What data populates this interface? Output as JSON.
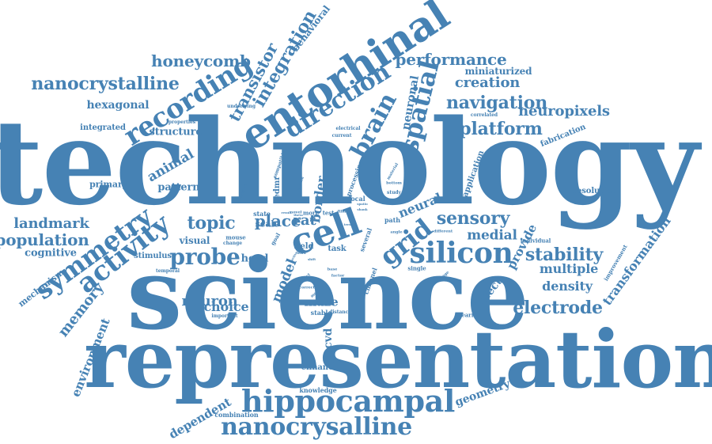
{
  "word_color": "#4682b4",
  "words": [
    {
      "text": "technology",
      "weight": 1.0
    },
    {
      "text": "science",
      "weight": 0.95
    },
    {
      "text": "representation",
      "weight": 0.75
    },
    {
      "text": "entorhinal",
      "weight": 0.45
    },
    {
      "text": "cell",
      "weight": 0.42
    },
    {
      "text": "hippocampal",
      "weight": 0.32
    },
    {
      "text": "nanocrysalline",
      "weight": 0.28
    },
    {
      "text": "symmetry",
      "weight": 0.28
    },
    {
      "text": "recording",
      "weight": 0.28
    },
    {
      "text": "silicon",
      "weight": 0.28
    },
    {
      "text": "spatial",
      "weight": 0.25
    },
    {
      "text": "activity",
      "weight": 0.26
    },
    {
      "text": "direction",
      "weight": 0.25
    },
    {
      "text": "grid",
      "weight": 0.27
    },
    {
      "text": "probe",
      "weight": 0.22
    },
    {
      "text": "brain",
      "weight": 0.22
    },
    {
      "text": "nanocrystalline",
      "weight": 0.22
    },
    {
      "text": "platform",
      "weight": 0.2
    },
    {
      "text": "navigation",
      "weight": 0.2
    },
    {
      "text": "integration",
      "weight": 0.2
    },
    {
      "text": "electrode",
      "weight": 0.2
    },
    {
      "text": "performance",
      "weight": 0.2
    },
    {
      "text": "stability",
      "weight": 0.2
    },
    {
      "text": "sensory",
      "weight": 0.2
    },
    {
      "text": "topic",
      "weight": 0.2
    },
    {
      "text": "population",
      "weight": 0.18
    },
    {
      "text": "landmark",
      "weight": 0.18
    },
    {
      "text": "neuropixels",
      "weight": 0.18
    },
    {
      "text": "place",
      "weight": 0.2
    },
    {
      "text": "transistor",
      "weight": 0.18
    },
    {
      "text": "honeycomb",
      "weight": 0.18
    },
    {
      "text": "creation",
      "weight": 0.16
    },
    {
      "text": "neuron",
      "weight": 0.16
    },
    {
      "text": "transformation",
      "weight": 0.16
    },
    {
      "text": "memory",
      "weight": 0.16
    },
    {
      "text": "medial",
      "weight": 0.15
    },
    {
      "text": "model",
      "weight": 0.15
    },
    {
      "text": "animal",
      "weight": 0.15
    },
    {
      "text": "rat",
      "weight": 0.15
    },
    {
      "text": "choice",
      "weight": 0.14
    },
    {
      "text": "density",
      "weight": 0.14
    },
    {
      "text": "multiple",
      "weight": 0.14
    },
    {
      "text": "provide",
      "weight": 0.14
    },
    {
      "text": "maze",
      "weight": 0.14
    },
    {
      "text": "pecvd",
      "weight": 0.14
    },
    {
      "text": "border",
      "weight": 0.14
    },
    {
      "text": "neural",
      "weight": 0.14
    },
    {
      "text": "defect",
      "weight": 0.13
    },
    {
      "text": "environment",
      "weight": 0.13
    },
    {
      "text": "dependent",
      "weight": 0.13
    },
    {
      "text": "geometry",
      "weight": 0.12
    },
    {
      "text": "neuronal",
      "weight": 0.12
    },
    {
      "text": "hexagonal",
      "weight": 0.12
    },
    {
      "text": "structure",
      "weight": 0.12
    },
    {
      "text": "mechanism",
      "weight": 0.11
    },
    {
      "text": "pattern",
      "weight": 0.12
    },
    {
      "text": "head",
      "weight": 0.12
    },
    {
      "text": "cognitive",
      "weight": 0.12
    },
    {
      "text": "miniaturized",
      "weight": 0.12
    },
    {
      "text": "behavioral",
      "weight": 0.12
    },
    {
      "text": "primary",
      "weight": 0.11
    },
    {
      "text": "visual",
      "weight": 0.11
    },
    {
      "text": "fabrication",
      "weight": 0.1
    },
    {
      "text": "application",
      "weight": 0.1
    },
    {
      "text": "resolution",
      "weight": 0.1
    },
    {
      "text": "stimulus",
      "weight": 0.1
    },
    {
      "text": "integrated",
      "weight": 0.1
    },
    {
      "text": "scale",
      "weight": 0.11
    },
    {
      "text": "task",
      "weight": 0.1
    },
    {
      "text": "field",
      "weight": 0.1
    },
    {
      "text": "edmr",
      "weight": 0.1
    },
    {
      "text": "enhance",
      "weight": 0.1
    },
    {
      "text": "knowledge",
      "weight": 0.08
    },
    {
      "text": "combination",
      "weight": 0.08
    },
    {
      "text": "channel",
      "weight": 0.09
    },
    {
      "text": "processing",
      "weight": 0.08
    },
    {
      "text": "path",
      "weight": 0.09
    },
    {
      "text": "state",
      "weight": 0.09
    },
    {
      "text": "local",
      "weight": 0.09
    },
    {
      "text": "more",
      "weight": 0.08
    },
    {
      "text": "test",
      "weight": 0.08
    },
    {
      "text": "goal",
      "weight": 0.08
    },
    {
      "text": "several",
      "weight": 0.08
    },
    {
      "text": "mouse",
      "weight": 0.08
    },
    {
      "text": "improvement",
      "weight": 0.08
    },
    {
      "text": "learning",
      "weight": 0.08
    },
    {
      "text": "individual",
      "weight": 0.07
    },
    {
      "text": "stable",
      "weight": 0.08
    },
    {
      "text": "distance",
      "weight": 0.07
    },
    {
      "text": "important",
      "weight": 0.07
    },
    {
      "text": "temporal",
      "weight": 0.07
    },
    {
      "text": "change",
      "weight": 0.07
    },
    {
      "text": "single",
      "weight": 0.08
    },
    {
      "text": "properties",
      "weight": 0.07
    },
    {
      "text": "underlying",
      "weight": 0.07
    },
    {
      "text": "electrical",
      "weight": 0.07
    },
    {
      "text": "current",
      "weight": 0.07
    },
    {
      "text": "correlated",
      "weight": 0.07
    },
    {
      "text": "compatible",
      "weight": 0.06
    },
    {
      "text": "enclosure",
      "weight": 0.06
    },
    {
      "text": "study",
      "weight": 0.07
    },
    {
      "text": "different",
      "weight": 0.06
    },
    {
      "text": "angle",
      "weight": 0.06
    },
    {
      "text": "coverage",
      "weight": 0.06
    },
    {
      "text": "factor",
      "weight": 0.06
    },
    {
      "text": "base",
      "weight": 0.06
    },
    {
      "text": "affect",
      "weight": 0.06
    },
    {
      "text": "correct",
      "weight": 0.06
    },
    {
      "text": "method",
      "weight": 0.06
    },
    {
      "text": "material",
      "weight": 0.06
    },
    {
      "text": "bottom",
      "weight": 0.06
    },
    {
      "text": "device",
      "weight": 0.06
    },
    {
      "text": "novel",
      "weight": 0.06
    },
    {
      "text": "film",
      "weight": 0.06
    },
    {
      "text": "result",
      "weight": 0.05
    },
    {
      "text": "shank",
      "weight": 0.05
    },
    {
      "text": "term",
      "weight": 0.05
    },
    {
      "text": "learn",
      "weight": 0.05
    },
    {
      "text": "shift",
      "weight": 0.05
    },
    {
      "text": "active",
      "weight": 0.05
    },
    {
      "text": "location",
      "weight": 0.05
    },
    {
      "text": "theta",
      "weight": 0.05
    },
    {
      "text": "spatio",
      "weight": 0.05
    }
  ]
}
